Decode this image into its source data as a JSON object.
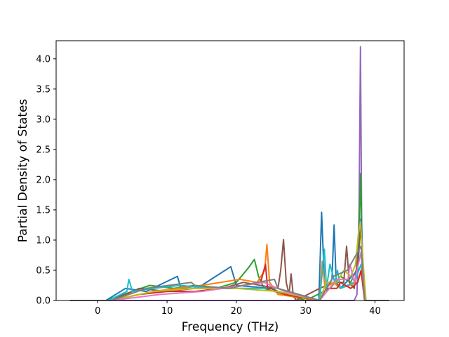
{
  "chart_data": {
    "type": "line",
    "xlabel": "Frequency (THz)",
    "ylabel": "Partial Density of States",
    "xlim": [
      -6,
      44.2
    ],
    "ylim": [
      0,
      4.3
    ],
    "xticks": [
      0,
      10,
      20,
      30,
      40
    ],
    "yticks": [
      0.0,
      0.5,
      1.0,
      1.5,
      2.0,
      2.5,
      3.0,
      3.5,
      4.0
    ],
    "xtick_labels": [
      "0",
      "10",
      "20",
      "30",
      "40"
    ],
    "ytick_labels": [
      "0.0",
      "0.5",
      "1.0",
      "1.5",
      "2.0",
      "2.5",
      "3.0",
      "3.5",
      "4.0"
    ],
    "grid": false,
    "legend": "none",
    "series_colors": [
      "#1f77b4",
      "#ff7f0e",
      "#2ca02c",
      "#d62728",
      "#9467bd",
      "#8c564b",
      "#e377c2",
      "#7f7f7f",
      "#bcbd22",
      "#17becf"
    ],
    "series": [
      {
        "color": "#9467bd",
        "x": [
          -4,
          37.0,
          37.4,
          37.7,
          37.9,
          38.1,
          38.3,
          38.6,
          42
        ],
        "y": [
          0,
          0,
          0.1,
          1.5,
          4.2,
          1.0,
          0.2,
          0,
          0
        ]
      },
      {
        "color": "#2ca02c",
        "x": [
          -4,
          1.2,
          5,
          7.5,
          11,
          14,
          17,
          20,
          21.8,
          22.6,
          23.2,
          24,
          30,
          33.5,
          35,
          36.5,
          37.3,
          37.7,
          37.9,
          38.2,
          38.6,
          42
        ],
        "y": [
          0,
          0,
          0.15,
          0.25,
          0.2,
          0.25,
          0.2,
          0.3,
          0.55,
          0.68,
          0.4,
          0.2,
          0,
          0.2,
          0.4,
          0.3,
          0.5,
          1.0,
          2.1,
          0.7,
          0,
          0
        ]
      },
      {
        "color": "#1f77b4",
        "x": [
          -4,
          1.2,
          4,
          7,
          11.5,
          12,
          15,
          19.2,
          20,
          25,
          26,
          31.9,
          32.3,
          32.7,
          33,
          33.8,
          34.1,
          34.4,
          35,
          37.5,
          38,
          38.5,
          42
        ],
        "y": [
          0,
          0,
          0.2,
          0.15,
          0.4,
          0.2,
          0.25,
          0.56,
          0.25,
          0.2,
          0.15,
          0,
          1.46,
          0.3,
          0.2,
          0.35,
          1.25,
          0.3,
          0.2,
          0.5,
          1.35,
          0,
          0
        ]
      },
      {
        "color": "#8c564b",
        "x": [
          -4,
          2,
          6,
          10,
          14,
          18,
          21,
          26,
          26.4,
          26.8,
          27.2,
          27.6,
          27.9,
          28.2,
          28.6,
          32,
          34,
          35.5,
          35.9,
          36.3,
          37,
          38,
          38.5,
          42
        ],
        "y": [
          0,
          0,
          0.2,
          0.15,
          0.2,
          0.2,
          0.3,
          0.2,
          0.5,
          1.01,
          0.3,
          0.1,
          0.44,
          0.1,
          0,
          0.2,
          0.3,
          0.3,
          0.9,
          0.3,
          0.2,
          1.2,
          0,
          0
        ]
      },
      {
        "color": "#ff7f0e",
        "x": [
          -4,
          2,
          8,
          15,
          20.5,
          23,
          24.1,
          24.4,
          24.8,
          26,
          32,
          32.4,
          32.8,
          34,
          35,
          37.5,
          38,
          38.5,
          42
        ],
        "y": [
          0,
          0,
          0.15,
          0.25,
          0.35,
          0.3,
          0.5,
          0.93,
          0.3,
          0.1,
          0,
          0.65,
          0.2,
          0.3,
          0.2,
          0.3,
          0.5,
          0,
          0
        ]
      },
      {
        "color": "#17becf",
        "x": [
          -4,
          1.5,
          4.2,
          4.5,
          5,
          8,
          12,
          16,
          20,
          26,
          32,
          32.7,
          33,
          33.5,
          34.2,
          34.6,
          35,
          37,
          38,
          38.5,
          42
        ],
        "y": [
          0,
          0,
          0.15,
          0.35,
          0.15,
          0.2,
          0.25,
          0.2,
          0.2,
          0.2,
          0,
          0.85,
          0.2,
          0.6,
          0.3,
          0.5,
          0.2,
          0.3,
          0.6,
          0,
          0
        ]
      },
      {
        "color": "#d62728",
        "x": [
          -4,
          2,
          6,
          10,
          14,
          18,
          21,
          23.5,
          24.2,
          24.5,
          25,
          27,
          32,
          33,
          34.5,
          35,
          36.5,
          37.5,
          38,
          38.5,
          42
        ],
        "y": [
          0,
          0,
          0.1,
          0.15,
          0.15,
          0.2,
          0.25,
          0.3,
          0.6,
          0.2,
          0.2,
          0.1,
          0,
          0.2,
          0.2,
          0.3,
          0.2,
          0.3,
          0.5,
          0,
          0
        ]
      },
      {
        "color": "#bcbd22",
        "x": [
          -4,
          2,
          8,
          14,
          20,
          26,
          32,
          33,
          34.5,
          35.5,
          36.5,
          37.2,
          37.6,
          37.9,
          38.3,
          38.7,
          42
        ],
        "y": [
          0,
          0,
          0.15,
          0.2,
          0.2,
          0.15,
          0,
          0.3,
          0.3,
          0.5,
          0.4,
          0.6,
          1.1,
          1.3,
          0.6,
          0,
          0
        ]
      },
      {
        "color": "#e377c2",
        "x": [
          -4,
          2,
          9,
          15,
          21,
          24,
          27,
          32,
          34.5,
          36.1,
          36.4,
          37,
          38,
          38.5,
          42
        ],
        "y": [
          0,
          0,
          0.1,
          0.15,
          0.25,
          0.3,
          0.15,
          0,
          0.35,
          0.35,
          0.6,
          0.3,
          0.8,
          0,
          0
        ]
      },
      {
        "color": "#7f7f7f",
        "x": [
          -4,
          2,
          7,
          13.5,
          14,
          19,
          23,
          25.5,
          26,
          32,
          34,
          36,
          38,
          38.5,
          42
        ],
        "y": [
          0,
          0,
          0.2,
          0.3,
          0.25,
          0.2,
          0.3,
          0.35,
          0.2,
          0,
          0.4,
          0.5,
          0.9,
          0,
          0
        ]
      }
    ]
  }
}
